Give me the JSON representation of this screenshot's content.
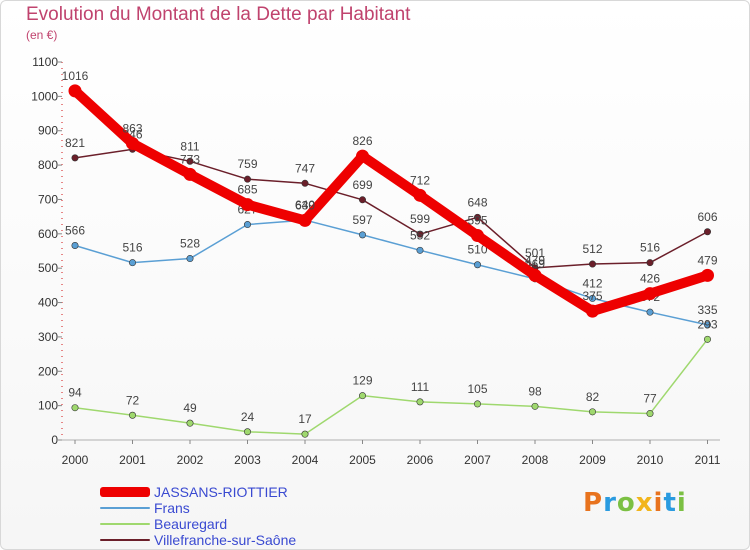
{
  "header": {
    "title": "Evolution du Montant de la Dette par Habitant",
    "subtitle": "(en €)"
  },
  "logo": {
    "text": "Proxiti",
    "colors": [
      "#e8731e",
      "#2a9be0",
      "#7bc043",
      "#f2b51c",
      "#e8731e",
      "#2a9be0",
      "#7bc043"
    ]
  },
  "chart_data": {
    "type": "line",
    "title": "Evolution du Montant de la Dette par Habitant",
    "subtitle": "(en €)",
    "x": [
      "2000",
      "2001",
      "2002",
      "2003",
      "2004",
      "2005",
      "2006",
      "2007",
      "2008",
      "2009",
      "2010",
      "2011"
    ],
    "ylim": [
      0,
      1100
    ],
    "yticks": [
      "0",
      "100",
      "200",
      "300",
      "400",
      "500",
      "600",
      "700",
      "800",
      "900",
      "1000",
      "1100"
    ],
    "grid": false,
    "legend_position": "bottom-left",
    "series": [
      {
        "name": "Villefranche-sur-Saône",
        "color": "#6b1f2a",
        "values": [
          821,
          846,
          811,
          759,
          747,
          699,
          599,
          648,
          501,
          512,
          516,
          606
        ],
        "labels": [
          "821",
          "846",
          "811",
          "759",
          "747",
          "699",
          "599",
          "648",
          "501",
          "512",
          "516",
          "606"
        ]
      },
      {
        "name": "Frans",
        "color": "#5a9fd4",
        "values": [
          566,
          516,
          528,
          627,
          640,
          597,
          552,
          510,
          469,
          412,
          372,
          335
        ],
        "labels": [
          "566",
          "516",
          "528",
          "627",
          "640",
          "597",
          "552",
          "510",
          "469",
          "412",
          "372",
          "335"
        ]
      },
      {
        "name": "Beauregard",
        "color": "#9fd86e",
        "values": [
          94,
          72,
          49,
          24,
          17,
          129,
          111,
          105,
          98,
          82,
          77,
          293
        ],
        "labels": [
          "94",
          "72",
          "49",
          "24",
          "17",
          "129",
          "111",
          "105",
          "98",
          "82",
          "77",
          "293"
        ]
      },
      {
        "name": "JASSANS-RIOTTIER",
        "color": "#ee0000",
        "values": [
          1016,
          863,
          773,
          685,
          639,
          826,
          712,
          595,
          479,
          375,
          426,
          479
        ],
        "labels": [
          "1016",
          "863",
          "773",
          "685",
          "639",
          "826",
          "712",
          "595",
          "479",
          "375",
          "426",
          "479"
        ]
      }
    ]
  },
  "legend": [
    {
      "name": "JASSANS-RIOTTIER",
      "color": "#ee0000",
      "weight": 10
    },
    {
      "name": "Frans",
      "color": "#5a9fd4",
      "weight": 2
    },
    {
      "name": "Beauregard",
      "color": "#9fd86e",
      "weight": 2
    },
    {
      "name": "Villefranche-sur-Saône",
      "color": "#6b1f2a",
      "weight": 2
    }
  ]
}
